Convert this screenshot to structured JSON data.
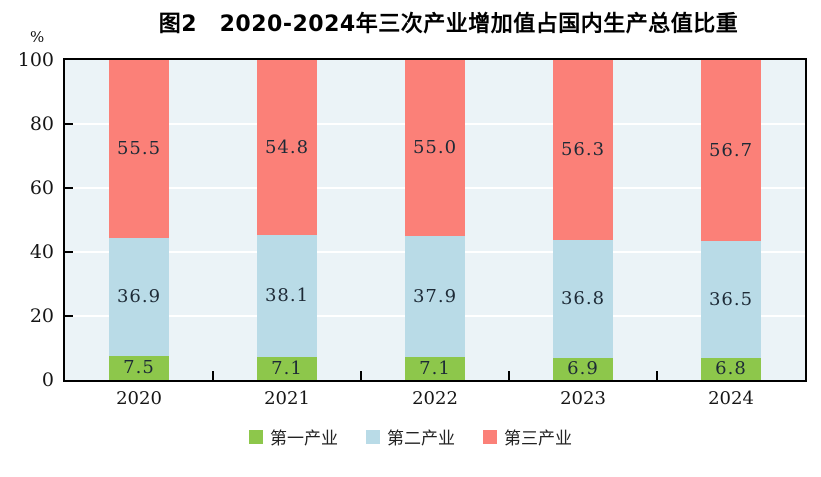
{
  "title": "图2　2020-2024年三次产业增加值占国内生产总值比重",
  "y_axis_unit": "%",
  "colors": {
    "plot_background": "#ebf3f7",
    "gridline": "#ffffff",
    "axis_frame": "#000000",
    "value_label_text": "#1d2a36",
    "series_primary": "#8dc74b",
    "series_secondary": "#b9dbe7",
    "series_tertiary": "#fb8078"
  },
  "chart_data": {
    "type": "bar",
    "stacked": true,
    "title": "图2　2020-2024年三次产业增加值占国内生产总值比重",
    "categories": [
      "2020",
      "2021",
      "2022",
      "2023",
      "2024"
    ],
    "series": [
      {
        "name": "第一产业",
        "color": "#8dc74b",
        "values": [
          7.5,
          7.1,
          7.1,
          6.9,
          6.8
        ]
      },
      {
        "name": "第二产业",
        "color": "#b9dbe7",
        "values": [
          36.9,
          38.1,
          37.9,
          36.8,
          36.5
        ]
      },
      {
        "name": "第三产业",
        "color": "#fb8078",
        "values": [
          55.5,
          54.8,
          55.0,
          56.3,
          56.7
        ]
      }
    ],
    "value_labels": [
      [
        "7.5",
        "7.1",
        "7.1",
        "6.9",
        "6.8"
      ],
      [
        "36.9",
        "38.1",
        "37.9",
        "36.8",
        "36.5"
      ],
      [
        "55.5",
        "54.8",
        "55.0",
        "56.3",
        "56.7"
      ]
    ],
    "xlabel": "",
    "ylabel": "%",
    "ylim": [
      0,
      100
    ],
    "yticks": [
      0,
      20,
      40,
      60,
      80,
      100
    ],
    "grid": true,
    "legend_position": "bottom",
    "legend_labels": [
      "第一产业",
      "第二产业",
      "第三产业"
    ]
  }
}
